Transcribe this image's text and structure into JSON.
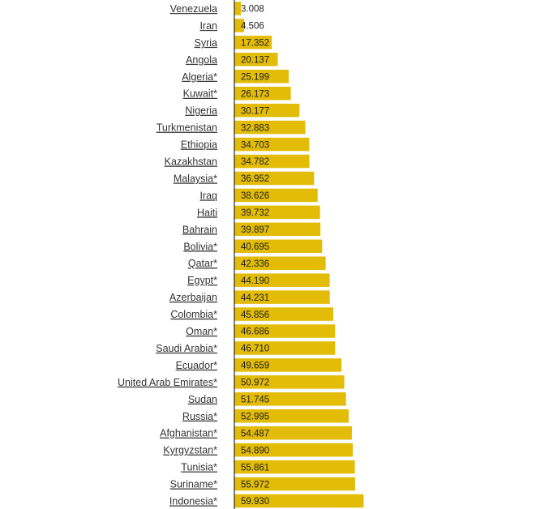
{
  "bar_color": "#e2bc07",
  "axis_color": "#000000",
  "chart_data": {
    "type": "bar",
    "orientation": "horizontal",
    "title": "",
    "xlabel": "",
    "ylabel": "",
    "xlim": [
      0,
      60
    ],
    "grid": false,
    "categories": [
      "Venezuela",
      "Iran",
      "Syria",
      "Angola",
      "Algeria*",
      "Kuwait*",
      "Nigeria",
      "Turkmenistan",
      "Ethiopia",
      "Kazakhstan",
      "Malaysia*",
      "Iraq",
      "Haiti",
      "Bahrain",
      "Bolivia*",
      "Qatar*",
      "Egypt*",
      "Azerbaijan",
      "Colombia*",
      "Oman*",
      "Saudi Arabia*",
      "Ecuador*",
      "United Arab Emirates*",
      "Sudan",
      "Russia*",
      "Afghanistan*",
      "Kyrgyzstan*",
      "Tunisia*",
      "Suriname*",
      "Indonesia*"
    ],
    "values": [
      3.008,
      4.506,
      17.352,
      20.137,
      25.199,
      26.173,
      30.177,
      32.883,
      34.703,
      34.782,
      36.952,
      38.626,
      39.732,
      39.897,
      40.695,
      42.336,
      44.19,
      44.231,
      45.856,
      46.686,
      46.71,
      49.659,
      50.972,
      51.745,
      52.995,
      54.487,
      54.89,
      55.861,
      55.972,
      59.93
    ],
    "value_labels": [
      "3.008",
      "4.506",
      "17.352",
      "20.137",
      "25.199",
      "26.173",
      "30.177",
      "32.883",
      "34.703",
      "34.782",
      "36.952",
      "38.626",
      "39.732",
      "39.897",
      "40.695",
      "42.336",
      "44.190",
      "44.231",
      "45.856",
      "46.686",
      "46.710",
      "49.659",
      "50.972",
      "51.745",
      "52.995",
      "54.487",
      "54.890",
      "55.861",
      "55.972",
      "59.930"
    ]
  }
}
